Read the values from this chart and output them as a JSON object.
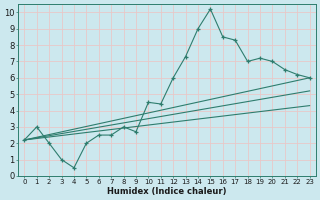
{
  "title": "",
  "xlabel": "Humidex (Indice chaleur)",
  "bg_color": "#cce8ee",
  "grid_color": "#e8c8c8",
  "line_color": "#2e7d6e",
  "xlim": [
    -0.5,
    23.5
  ],
  "ylim": [
    0,
    10.5
  ],
  "xticks": [
    0,
    1,
    2,
    3,
    4,
    5,
    6,
    7,
    8,
    9,
    10,
    11,
    12,
    13,
    14,
    15,
    16,
    17,
    18,
    19,
    20,
    21,
    22,
    23
  ],
  "yticks": [
    0,
    1,
    2,
    3,
    4,
    5,
    6,
    7,
    8,
    9,
    10
  ],
  "main_x": [
    0,
    1,
    2,
    3,
    4,
    5,
    6,
    7,
    8,
    9,
    10,
    11,
    12,
    13,
    14,
    15,
    16,
    17,
    18,
    19,
    20,
    21,
    22,
    23
  ],
  "main_y": [
    2.2,
    3.0,
    2.0,
    1.0,
    0.5,
    2.0,
    2.5,
    2.5,
    3.0,
    2.7,
    4.5,
    4.4,
    6.0,
    7.3,
    9.0,
    10.2,
    8.5,
    8.3,
    7.0,
    7.2,
    7.0,
    6.5,
    6.2,
    6.0
  ],
  "trend1_x": [
    0,
    23
  ],
  "trend1_y": [
    2.2,
    6.0
  ],
  "trend2_x": [
    0,
    23
  ],
  "trend2_y": [
    2.2,
    5.2
  ],
  "trend3_x": [
    0,
    23
  ],
  "trend3_y": [
    2.2,
    4.3
  ],
  "xlabel_fontsize": 6,
  "tick_fontsize": 5
}
